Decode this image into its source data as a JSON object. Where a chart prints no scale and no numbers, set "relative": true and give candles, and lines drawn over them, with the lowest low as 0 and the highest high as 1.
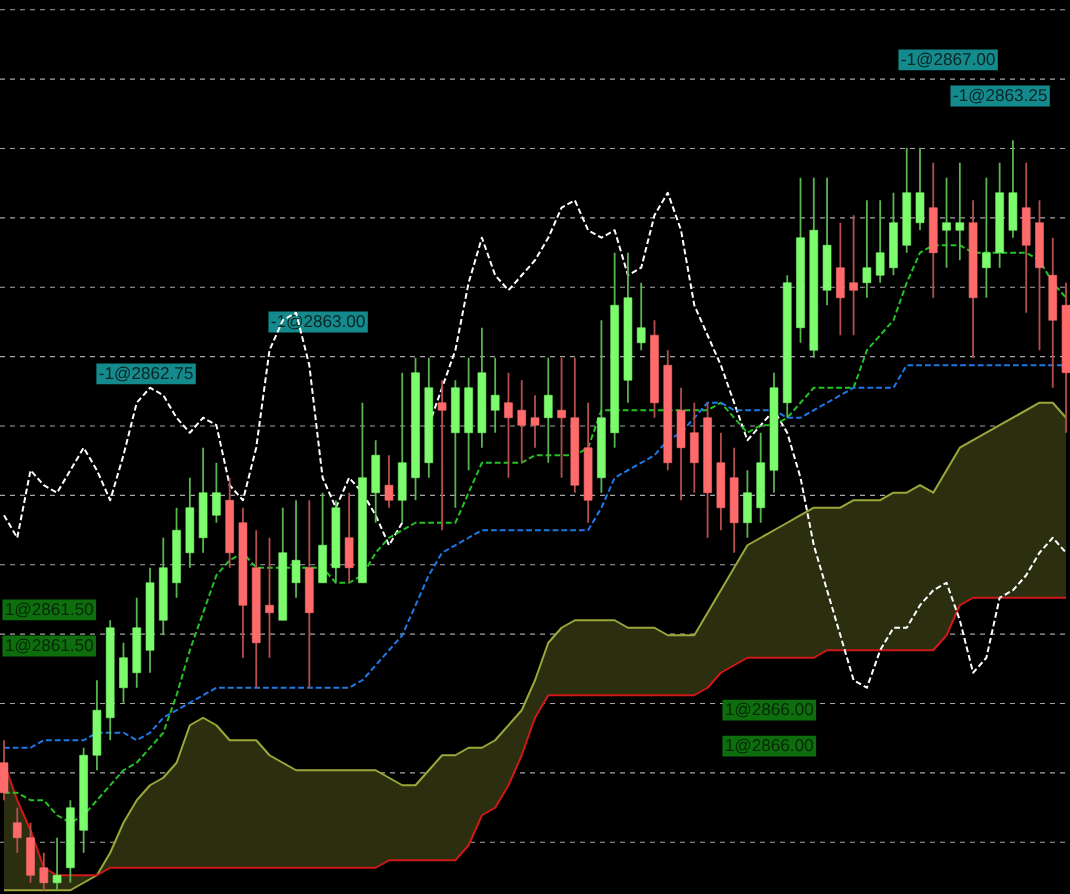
{
  "chart_data": {
    "type": "candlestick",
    "relative": true,
    "grid": "y",
    "categories": [
      null,
      null,
      null,
      null,
      null,
      null,
      null,
      null,
      null,
      null,
      null,
      null,
      null,
      null,
      null,
      null,
      null,
      null,
      null,
      null,
      null,
      null,
      null,
      null,
      null,
      null,
      null,
      null,
      null,
      null,
      null,
      null,
      null,
      null,
      null,
      null,
      null,
      null,
      null,
      null,
      null,
      null,
      null,
      null,
      null,
      null,
      null,
      null,
      null,
      null,
      null,
      null,
      null,
      null,
      null,
      null,
      null,
      null,
      null,
      null,
      null,
      null,
      null,
      null,
      null,
      null,
      null,
      null,
      null,
      null,
      null,
      null,
      null,
      null,
      null,
      null,
      null,
      null,
      null,
      null,
      null
    ],
    "ohlc": [
      [
        0.17,
        0.2,
        0.12,
        0.13
      ],
      [
        0.09,
        0.11,
        0.05,
        0.07
      ],
      [
        0.07,
        0.09,
        0.01,
        0.02
      ],
      [
        0.03,
        0.05,
        0,
        0.01
      ],
      [
        0.01,
        0.07,
        0,
        0.02
      ],
      [
        0.03,
        0.12,
        0.01,
        0.11
      ],
      [
        0.08,
        0.19,
        0.05,
        0.18
      ],
      [
        0.18,
        0.28,
        0.16,
        0.24
      ],
      [
        0.23,
        0.36,
        0.2,
        0.35
      ],
      [
        0.27,
        0.33,
        0.25,
        0.31
      ],
      [
        0.29,
        0.39,
        0.27,
        0.35
      ],
      [
        0.32,
        0.43,
        0.29,
        0.41
      ],
      [
        0.36,
        0.47,
        0.34,
        0.43
      ],
      [
        0.41,
        0.51,
        0.39,
        0.48
      ],
      [
        0.45,
        0.55,
        0.43,
        0.51
      ],
      [
        0.47,
        0.59,
        0.45,
        0.53
      ],
      [
        0.5,
        0.57,
        0.49,
        0.53
      ],
      [
        0.52,
        0.55,
        0.43,
        0.45
      ],
      [
        0.49,
        0.51,
        0.31,
        0.38
      ],
      [
        0.43,
        0.48,
        0.27,
        0.33
      ],
      [
        0.38,
        0.47,
        0.31,
        0.37
      ],
      [
        0.36,
        0.51,
        0.36,
        0.45
      ],
      [
        0.41,
        0.52,
        0.39,
        0.44
      ],
      [
        0.43,
        0.52,
        0.27,
        0.37
      ],
      [
        0.41,
        0.53,
        0.41,
        0.46
      ],
      [
        0.43,
        0.52,
        0.41,
        0.51
      ],
      [
        0.47,
        0.53,
        0.41,
        0.43
      ],
      [
        0.41,
        0.65,
        0.41,
        0.55
      ],
      [
        0.53,
        0.6,
        0.49,
        0.58
      ],
      [
        0.54,
        0.58,
        0.51,
        0.52
      ],
      [
        0.52,
        0.69,
        0.49,
        0.57
      ],
      [
        0.55,
        0.71,
        0.52,
        0.69
      ],
      [
        0.57,
        0.71,
        0.55,
        0.67
      ],
      [
        0.65,
        0.68,
        0.48,
        0.64
      ],
      [
        0.61,
        0.68,
        0.51,
        0.67
      ],
      [
        0.61,
        0.71,
        0.56,
        0.67
      ],
      [
        0.61,
        0.75,
        0.59,
        0.69
      ],
      [
        0.64,
        0.71,
        0.61,
        0.66
      ],
      [
        0.65,
        0.69,
        0.55,
        0.63
      ],
      [
        0.64,
        0.68,
        0.57,
        0.62
      ],
      [
        0.63,
        0.66,
        0.59,
        0.62
      ],
      [
        0.63,
        0.71,
        0.57,
        0.66
      ],
      [
        0.64,
        0.71,
        0.55,
        0.63
      ],
      [
        0.63,
        0.71,
        0.53,
        0.54
      ],
      [
        0.59,
        0.65,
        0.49,
        0.52
      ],
      [
        0.55,
        0.76,
        0.53,
        0.63
      ],
      [
        0.61,
        0.85,
        0.59,
        0.78
      ],
      [
        0.68,
        0.85,
        0.65,
        0.79
      ],
      [
        0.73,
        0.81,
        0.72,
        0.75
      ],
      [
        0.74,
        0.76,
        0.63,
        0.65
      ],
      [
        0.7,
        0.72,
        0.56,
        0.57
      ],
      [
        0.64,
        0.67,
        0.52,
        0.59
      ],
      [
        0.61,
        0.65,
        0.53,
        0.57
      ],
      [
        0.63,
        0.65,
        0.47,
        0.53
      ],
      [
        0.57,
        0.61,
        0.48,
        0.51
      ],
      [
        0.55,
        0.59,
        0.45,
        0.49
      ],
      [
        0.49,
        0.56,
        0.47,
        0.53
      ],
      [
        0.51,
        0.61,
        0.49,
        0.57
      ],
      [
        0.56,
        0.69,
        0.53,
        0.67
      ],
      [
        0.65,
        0.82,
        0.63,
        0.81
      ],
      [
        0.75,
        0.95,
        0.73,
        0.87
      ],
      [
        0.72,
        0.95,
        0.71,
        0.88
      ],
      [
        0.8,
        0.95,
        0.78,
        0.86
      ],
      [
        0.83,
        0.89,
        0.74,
        0.79
      ],
      [
        0.81,
        0.9,
        0.74,
        0.8
      ],
      [
        0.81,
        0.92,
        0.79,
        0.83
      ],
      [
        0.82,
        0.92,
        0.81,
        0.85
      ],
      [
        0.83,
        0.93,
        0.82,
        0.89
      ],
      [
        0.86,
        0.99,
        0.85,
        0.93
      ],
      [
        0.89,
        0.99,
        0.88,
        0.93
      ],
      [
        0.91,
        0.97,
        0.79,
        0.85
      ],
      [
        0.88,
        0.95,
        0.83,
        0.89
      ],
      [
        0.88,
        0.97,
        0.84,
        0.89
      ],
      [
        0.89,
        0.92,
        0.71,
        0.79
      ],
      [
        0.83,
        0.95,
        0.79,
        0.85
      ],
      [
        0.85,
        0.97,
        0.83,
        0.93
      ],
      [
        0.88,
        1.0,
        0.87,
        0.93
      ],
      [
        0.91,
        0.97,
        0.77,
        0.86
      ],
      [
        0.89,
        0.92,
        0.72,
        0.83
      ],
      [
        0.82,
        0.87,
        0.67,
        0.76
      ],
      [
        0.78,
        0.81,
        0.61,
        0.69
      ]
    ],
    "colors": [
      "#ff6b6b",
      "#ff6b6b",
      "#ff6b6b",
      "#ff6b6b",
      "#7cfc6c",
      "#7cfc6c",
      "#7cfc6c",
      "#7cfc6c",
      "#7cfc6c",
      "#7cfc6c",
      "#7cfc6c",
      "#7cfc6c",
      "#7cfc6c",
      "#7cfc6c",
      "#7cfc6c",
      "#7cfc6c",
      "#7cfc6c",
      "#ff6b6b",
      "#ff6b6b",
      "#ff6b6b",
      "#ff6b6b",
      "#7cfc6c",
      "#7cfc6c",
      "#ff6b6b",
      "#7cfc6c",
      "#7cfc6c",
      "#ff6b6b",
      "#7cfc6c",
      "#7cfc6c",
      "#ff6b6b",
      "#7cfc6c",
      "#7cfc6c",
      "#7cfc6c",
      "#ff6b6b",
      "#7cfc6c",
      "#7cfc6c",
      "#7cfc6c",
      "#7cfc6c",
      "#ff6b6b",
      "#ff6b6b",
      "#ff6b6b",
      "#7cfc6c",
      "#ff6b6b",
      "#ff6b6b",
      "#ff6b6b",
      "#7cfc6c",
      "#7cfc6c",
      "#7cfc6c",
      "#7cfc6c",
      "#ff6b6b",
      "#ff6b6b",
      "#ff6b6b",
      "#ff6b6b",
      "#ff6b6b",
      "#ff6b6b",
      "#ff6b6b",
      "#7cfc6c",
      "#7cfc6c",
      "#7cfc6c",
      "#7cfc6c",
      "#7cfc6c",
      "#7cfc6c",
      "#7cfc6c",
      "#ff6b6b",
      "#ff6b6b",
      "#7cfc6c",
      "#7cfc6c",
      "#7cfc6c",
      "#7cfc6c",
      "#7cfc6c",
      "#ff6b6b",
      "#7cfc6c",
      "#7cfc6c",
      "#ff6b6b",
      "#7cfc6c",
      "#7cfc6c",
      "#7cfc6c",
      "#ff6b6b",
      "#ff6b6b",
      "#ff6b6b",
      "#ff6b6b"
    ],
    "series": [
      {
        "type": "line",
        "color": "#9aa83a",
        "line_style": "solid",
        "values": [
          0,
          0,
          0,
          0,
          0,
          0,
          0.01,
          0.02,
          0.05,
          0.09,
          0.12,
          0.14,
          0.15,
          0.17,
          0.22,
          0.23,
          0.22,
          0.2,
          0.2,
          0.2,
          0.18,
          0.17,
          0.16,
          0.16,
          0.16,
          0.16,
          0.16,
          0.16,
          0.16,
          0.15,
          0.14,
          0.14,
          0.16,
          0.18,
          0.18,
          0.19,
          0.19,
          0.2,
          0.22,
          0.24,
          0.28,
          0.33,
          0.35,
          0.36,
          0.36,
          0.36,
          0.36,
          0.35,
          0.35,
          0.35,
          0.34,
          0.34,
          0.34,
          0.37,
          0.4,
          0.43,
          0.46,
          0.47,
          0.48,
          0.49,
          0.5,
          0.51,
          0.51,
          0.51,
          0.52,
          0.52,
          0.52,
          0.53,
          0.53,
          0.54,
          0.53,
          0.56,
          0.59,
          0.6,
          0.61,
          0.62,
          0.63,
          0.64,
          0.65,
          0.65,
          0.63
        ],
        "upper": [
          0,
          0,
          0,
          0,
          0,
          0,
          0.01,
          0.02,
          0.05,
          0.09,
          0.12,
          0.14,
          0.15,
          0.17,
          0.22,
          0.23,
          0.22,
          0.2,
          0.2,
          0.2,
          0.18,
          0.17,
          0.16,
          0.16,
          0.16,
          0.16,
          0.16,
          0.16,
          0.16,
          0.15,
          0.14,
          0.14,
          0.16,
          0.18,
          0.18,
          0.19,
          0.19,
          0.2,
          0.22,
          0.24,
          0.28,
          0.33,
          0.35,
          0.36,
          0.36,
          0.36,
          0.36,
          0.35,
          0.35,
          0.35,
          0.34,
          0.34,
          0.34,
          0.37,
          0.4,
          0.43,
          0.46,
          0.47,
          0.48,
          0.49,
          0.5,
          0.51,
          0.51,
          0.51,
          0.52,
          0.52,
          0.52,
          0.53,
          0.53,
          0.54,
          0.53,
          0.56,
          0.59,
          0.6,
          0.61,
          0.62,
          0.63,
          0.64,
          0.65,
          0.65,
          0.63
        ],
        "lower": [
          0.17,
          0.12,
          0.08,
          0.03,
          0.02,
          0.02,
          0.02,
          0.02,
          0.03,
          0.03,
          0.03,
          0.03,
          0.03,
          0.03,
          0.03,
          0.03,
          0.03,
          0.03,
          0.03,
          0.03,
          0.03,
          0.03,
          0.03,
          0.03,
          0.03,
          0.03,
          0.03,
          0.03,
          0.03,
          0.04,
          0.04,
          0.04,
          0.04,
          0.04,
          0.04,
          0.06,
          0.1,
          0.11,
          0.14,
          0.18,
          0.23,
          0.26,
          0.26,
          0.26,
          0.26,
          0.26,
          0.26,
          0.26,
          0.26,
          0.26,
          0.26,
          0.26,
          0.26,
          0.27,
          0.29,
          0.3,
          0.31,
          0.31,
          0.31,
          0.31,
          0.31,
          0.31,
          0.32,
          0.32,
          0.32,
          0.32,
          0.32,
          0.32,
          0.32,
          0.32,
          0.32,
          0.34,
          0.38,
          0.39,
          0.39,
          0.39,
          0.39,
          0.39,
          0.39,
          0.39,
          0.39
        ]
      },
      {
        "type": "line",
        "color": "#d01818",
        "line_style": "solid",
        "values": [
          0.17,
          0.12,
          0.08,
          0.03,
          0.02,
          0.02,
          0.02,
          0.02,
          0.03,
          0.03,
          0.03,
          0.03,
          0.03,
          0.03,
          0.03,
          0.03,
          0.03,
          0.03,
          0.03,
          0.03,
          0.03,
          0.03,
          0.03,
          0.03,
          0.03,
          0.03,
          0.03,
          0.03,
          0.03,
          0.04,
          0.04,
          0.04,
          0.04,
          0.04,
          0.04,
          0.06,
          0.1,
          0.11,
          0.14,
          0.18,
          0.23,
          0.26,
          0.26,
          0.26,
          0.26,
          0.26,
          0.26,
          0.26,
          0.26,
          0.26,
          0.26,
          0.26,
          0.26,
          0.27,
          0.29,
          0.3,
          0.31,
          0.31,
          0.31,
          0.31,
          0.31,
          0.31,
          0.32,
          0.32,
          0.32,
          0.32,
          0.32,
          0.32,
          0.32,
          0.32,
          0.32,
          0.34,
          0.38,
          0.39,
          0.39,
          0.39,
          0.39,
          0.39,
          0.39,
          0.39,
          0.39
        ]
      },
      {
        "type": "line",
        "color": "#ffffff",
        "line_style": "dashed",
        "values": [
          0.5,
          0.47,
          0.56,
          0.54,
          0.53,
          0.56,
          0.59,
          0.56,
          0.52,
          0.58,
          0.65,
          0.67,
          0.66,
          0.63,
          0.61,
          0.63,
          0.62,
          0.54,
          0.52,
          0.59,
          0.72,
          0.76,
          0.77,
          0.7,
          0.55,
          0.51,
          0.55,
          0.53,
          0.5,
          0.46,
          0.49,
          null,
          0.62,
          0.67,
          0.72,
          0.81,
          0.87,
          0.82,
          0.8,
          0.82,
          0.84,
          0.87,
          0.91,
          0.92,
          0.88,
          0.87,
          0.88,
          0.82,
          0.83,
          0.9,
          0.93,
          0.88,
          0.78,
          0.74,
          0.7,
          0.65,
          0.6,
          0.62,
          0.64,
          0.61,
          0.55,
          0.46,
          0.4,
          0.34,
          0.28,
          0.27,
          0.32,
          0.35,
          0.35,
          0.38,
          0.4,
          0.41,
          0.36,
          0.29,
          0.31,
          0.39,
          0.4,
          0.42,
          0.45,
          0.47,
          0.45
        ]
      },
      {
        "type": "line",
        "color": "#22c322",
        "line_style": "dashed",
        "values": [
          0.13,
          0.13,
          0.12,
          0.12,
          0.1,
          0.09,
          0.1,
          0.12,
          0.14,
          0.16,
          0.17,
          0.19,
          0.21,
          0.26,
          0.32,
          0.37,
          0.42,
          0.44,
          0.45,
          0.43,
          0.43,
          0.43,
          0.43,
          0.43,
          0.43,
          0.41,
          0.41,
          0.42,
          0.45,
          0.47,
          0.48,
          0.49,
          0.49,
          0.49,
          0.49,
          0.53,
          0.57,
          0.57,
          0.57,
          0.57,
          0.58,
          0.58,
          0.58,
          0.58,
          0.59,
          0.64,
          0.64,
          0.64,
          0.64,
          0.64,
          0.64,
          0.64,
          0.64,
          0.64,
          0.65,
          0.63,
          0.61,
          0.62,
          0.62,
          0.63,
          0.65,
          0.67,
          0.67,
          0.67,
          0.67,
          0.72,
          0.74,
          0.76,
          0.81,
          0.85,
          0.86,
          0.86,
          0.86,
          0.85,
          0.85,
          0.85,
          0.85,
          0.85,
          0.84,
          0.81,
          0.79
        ]
      },
      {
        "type": "line",
        "color": "#1e78e6",
        "line_style": "dashed",
        "values": [
          0.19,
          0.19,
          0.19,
          0.2,
          0.2,
          0.2,
          0.2,
          0.21,
          0.21,
          0.21,
          0.2,
          0.21,
          0.23,
          0.24,
          0.25,
          0.26,
          0.27,
          0.27,
          0.27,
          0.27,
          0.27,
          0.27,
          0.27,
          0.27,
          0.27,
          0.27,
          0.27,
          0.28,
          0.3,
          0.32,
          0.34,
          0.38,
          0.42,
          0.45,
          0.46,
          0.47,
          0.48,
          0.48,
          0.48,
          0.48,
          0.48,
          0.48,
          0.48,
          0.48,
          0.48,
          0.51,
          0.55,
          0.56,
          0.57,
          0.58,
          0.6,
          0.61,
          0.63,
          0.65,
          0.65,
          0.64,
          0.64,
          0.64,
          0.64,
          0.63,
          0.63,
          0.64,
          0.65,
          0.66,
          0.67,
          0.67,
          0.67,
          0.67,
          0.7,
          0.7,
          0.7,
          0.7,
          0.7,
          0.7,
          0.7,
          0.7,
          0.7,
          0.7,
          0.7,
          0.7,
          0.7
        ]
      }
    ],
    "annotations": [
      "-1@2867.00",
      "-1@2863.25",
      "-1@2863.00",
      "-1@2862.75",
      "1@2866.00",
      "1@2866.00",
      "1@2861.50",
      "1@2861.50"
    ]
  }
}
